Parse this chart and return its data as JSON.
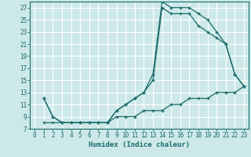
{
  "bg_color": "#cde8e8",
  "grid_color": "#ffffff",
  "line_color": "#1a6b6b",
  "xlabel": "Humidex (Indice chaleur)",
  "xlim": [
    -0.5,
    23.5
  ],
  "ylim": [
    7,
    28
  ],
  "yticks": [
    7,
    9,
    11,
    13,
    15,
    17,
    19,
    21,
    23,
    25,
    27
  ],
  "xticks": [
    0,
    1,
    2,
    3,
    4,
    5,
    6,
    7,
    8,
    9,
    10,
    11,
    12,
    13,
    14,
    15,
    16,
    17,
    18,
    19,
    20,
    21,
    22,
    23
  ],
  "line1_x": [
    1,
    2,
    3,
    4,
    5,
    6,
    7,
    8,
    9,
    10,
    11,
    12,
    13,
    14,
    15,
    16,
    17,
    18,
    19,
    20,
    21,
    22,
    23
  ],
  "line1_y": [
    12,
    9,
    8,
    8,
    8,
    8,
    8,
    8,
    10,
    11,
    12,
    13,
    16,
    28,
    27,
    27,
    27,
    26,
    25,
    23,
    21,
    16,
    14
  ],
  "line2_x": [
    1,
    2,
    3,
    4,
    5,
    6,
    7,
    8,
    9,
    10,
    11,
    12,
    13,
    14,
    15,
    16,
    17,
    18,
    19,
    20,
    21,
    22,
    23
  ],
  "line2_y": [
    12,
    9,
    8,
    8,
    8,
    8,
    8,
    8,
    10,
    11,
    12,
    13,
    15,
    27,
    26,
    26,
    26,
    24,
    23,
    22,
    21,
    16,
    14
  ],
  "line3_x": [
    1,
    2,
    3,
    4,
    5,
    6,
    7,
    8,
    9,
    10,
    11,
    12,
    13,
    14,
    15,
    16,
    17,
    18,
    19,
    20,
    21,
    22,
    23
  ],
  "line3_y": [
    8,
    8,
    8,
    8,
    8,
    8,
    8,
    8,
    9,
    9,
    9,
    10,
    10,
    10,
    11,
    11,
    12,
    12,
    12,
    13,
    13,
    13,
    14
  ]
}
